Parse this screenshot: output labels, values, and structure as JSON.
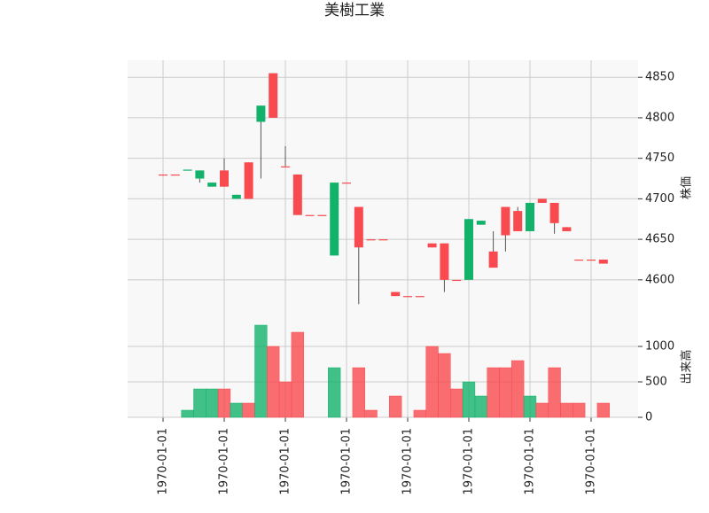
{
  "chart_data": {
    "type": "candlestick",
    "title": "美樹工業",
    "categories": [
      "1970-01-01",
      null,
      null,
      null,
      null,
      "1970-01-01",
      null,
      null,
      null,
      null,
      "1970-01-01",
      null,
      null,
      null,
      null,
      "1970-01-01",
      null,
      null,
      null,
      null,
      "1970-01-01",
      null,
      null,
      null,
      null,
      "1970-01-01",
      null,
      null,
      null,
      null,
      "1970-01-01",
      null,
      null,
      null,
      null,
      "1970-01-01",
      null
    ],
    "open": [
      4730,
      4730,
      4736,
      4735,
      4720,
      4715,
      4705,
      4700,
      4815,
      4800,
      4740,
      4680,
      4680,
      4680,
      4720,
      4720,
      4640,
      4650,
      4650,
      4580,
      4580,
      4580,
      4640,
      4600,
      4600,
      4675,
      4673,
      4615,
      4655,
      4660,
      4695,
      4695,
      4670,
      4660,
      4625,
      4625,
      4620
    ],
    "high": [
      4730,
      4730,
      4736,
      4735,
      4720,
      4750,
      4705,
      4745,
      4815,
      4855,
      4765,
      4730,
      4680,
      4680,
      4720,
      4720,
      4690,
      4650,
      4650,
      4585,
      4580,
      4580,
      4645,
      4645,
      4600,
      4675,
      4673,
      4660,
      4690,
      4690,
      4695,
      4700,
      4695,
      4665,
      4625,
      4625,
      4625
    ],
    "low": [
      4730,
      4730,
      4735,
      4720,
      4715,
      4715,
      4700,
      4700,
      4725,
      4800,
      4740,
      4680,
      4680,
      4680,
      4630,
      4720,
      4570,
      4650,
      4650,
      4580,
      4580,
      4580,
      4640,
      4585,
      4600,
      4600,
      4668,
      4615,
      4635,
      4660,
      4660,
      4695,
      4657,
      4660,
      4625,
      4625,
      4620
    ],
    "close": [
      4730,
      4730,
      4735,
      4725,
      4715,
      4735,
      4700,
      4745,
      4795,
      4855,
      4740,
      4730,
      4680,
      4680,
      4630,
      4720,
      4690,
      4650,
      4650,
      4585,
      4580,
      4580,
      4645,
      4645,
      4600,
      4600,
      4668,
      4635,
      4690,
      4685,
      4660,
      4700,
      4695,
      4665,
      4625,
      4625,
      4625
    ],
    "volume": [
      0,
      0,
      100,
      400,
      400,
      400,
      200,
      200,
      1300,
      1000,
      500,
      1200,
      0,
      0,
      700,
      0,
      700,
      100,
      0,
      300,
      0,
      100,
      1000,
      900,
      400,
      500,
      300,
      700,
      700,
      800,
      300,
      200,
      700,
      200,
      200,
      0,
      200
    ],
    "up_color": "#f94a4f",
    "down_color": "#13b26a",
    "ylabel": "株価",
    "ylim": [
      4555,
      4871
    ],
    "yticks": [
      4600,
      4650,
      4700,
      4750,
      4800,
      4850
    ],
    "y2label": "出来高",
    "y2lim": [
      0,
      1425
    ],
    "y2ticks": [
      0,
      500,
      1000
    ],
    "grid": true
  }
}
